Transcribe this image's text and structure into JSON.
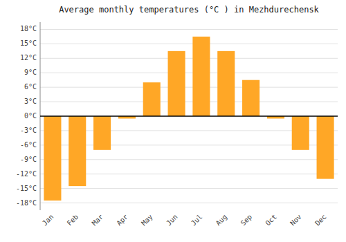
{
  "chart_data": {
    "type": "bar",
    "title": "Average monthly temperatures (°C ) in Mezhdurechensk",
    "categories": [
      "Jan",
      "Feb",
      "Mar",
      "Apr",
      "May",
      "Jun",
      "Jul",
      "Aug",
      "Sep",
      "Oct",
      "Nov",
      "Dec"
    ],
    "values": [
      -17.5,
      -14.5,
      -7.0,
      -0.5,
      7.0,
      13.5,
      16.5,
      13.5,
      7.5,
      -0.5,
      -7.0,
      -13.0
    ],
    "color": "#FFA726",
    "ylim": [
      -19.5,
      19.5
    ],
    "yticks": [
      {
        "value": -18,
        "label": "-18°C"
      },
      {
        "value": -15,
        "label": "-15°C"
      },
      {
        "value": -12,
        "label": "-12°C"
      },
      {
        "value": -9,
        "label": "-9°C"
      },
      {
        "value": -6,
        "label": "-6°C"
      },
      {
        "value": -3,
        "label": "-3°C"
      },
      {
        "value": 0,
        "label": "0°C"
      },
      {
        "value": 3,
        "label": "3°C"
      },
      {
        "value": 6,
        "label": "6°C"
      },
      {
        "value": 9,
        "label": "9°C"
      },
      {
        "value": 12,
        "label": "12°C"
      },
      {
        "value": 15,
        "label": "15°C"
      },
      {
        "value": 18,
        "label": "18°C"
      }
    ],
    "grid": true
  }
}
